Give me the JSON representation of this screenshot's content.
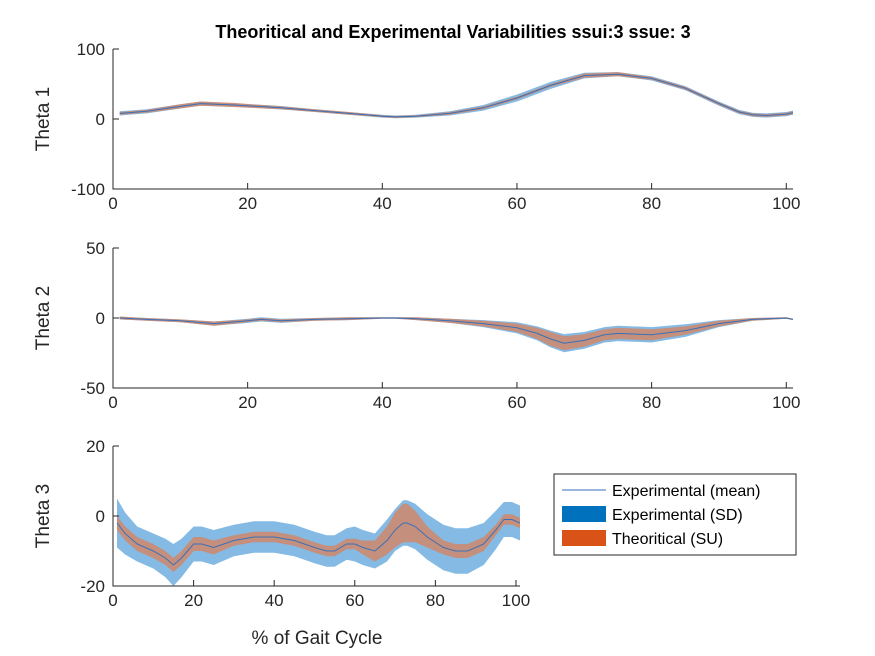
{
  "chart_data": [
    {
      "type": "area",
      "title": "Theoritical and Experimental Variabilities ssui:3 ssue: 3",
      "ylabel": "Theta 1",
      "xlabel": "",
      "xlim": [
        0,
        101
      ],
      "ylim": [
        -100,
        100
      ],
      "xticks": [
        0,
        20,
        40,
        60,
        80,
        100
      ],
      "yticks": [
        -100,
        0,
        100
      ],
      "x": [
        1,
        5,
        10,
        13,
        18,
        25,
        30,
        35,
        40,
        42,
        45,
        50,
        55,
        60,
        65,
        70,
        75,
        80,
        85,
        90,
        93,
        95,
        97,
        100,
        101
      ],
      "mean": [
        8,
        11,
        18,
        22,
        20,
        16,
        12,
        8,
        4,
        3,
        4,
        8,
        16,
        30,
        48,
        62,
        64,
        58,
        44,
        22,
        10,
        6,
        5,
        7,
        9
      ],
      "sd": [
        3,
        3,
        3,
        3,
        2.5,
        2.5,
        2,
        2,
        2,
        2,
        2,
        3,
        4,
        5,
        5,
        4,
        3,
        3,
        3,
        3,
        3,
        3,
        3,
        3,
        3
      ],
      "su": [
        2,
        2,
        3,
        3,
        3,
        2,
        2,
        2,
        1.5,
        1.5,
        1.5,
        2,
        2,
        2,
        2,
        3,
        3,
        2,
        2,
        2,
        2,
        2,
        2,
        2,
        2
      ]
    },
    {
      "type": "area",
      "title": "",
      "ylabel": "Theta 2",
      "xlabel": "",
      "xlim": [
        0,
        101
      ],
      "ylim": [
        -50,
        50
      ],
      "xticks": [
        0,
        20,
        40,
        60,
        80,
        100
      ],
      "yticks": [
        -50,
        0,
        50
      ],
      "x": [
        1,
        5,
        10,
        15,
        20,
        22,
        25,
        30,
        35,
        40,
        42,
        45,
        50,
        55,
        60,
        63,
        65,
        67,
        70,
        73,
        75,
        80,
        85,
        90,
        95,
        100,
        101
      ],
      "mean": [
        0,
        -1,
        -2,
        -4,
        -2,
        -1,
        -2,
        -1,
        -0.5,
        0,
        0,
        -0.5,
        -2,
        -4,
        -7,
        -11,
        -15,
        -18,
        -16,
        -12,
        -11,
        -12,
        -9,
        -4,
        -1,
        0,
        -1
      ],
      "sd": [
        1,
        1,
        1,
        1.5,
        1.5,
        1.5,
        1.5,
        1,
        1,
        0.5,
        0.5,
        1,
        1.5,
        2.5,
        4,
        5,
        6,
        6.5,
        6,
        5.5,
        5.5,
        5.5,
        4.5,
        2.5,
        1,
        0.5,
        0.5
      ],
      "su": [
        1,
        1,
        1,
        1.5,
        1,
        1,
        1,
        1,
        1,
        0.5,
        0.5,
        1,
        1.5,
        2,
        3,
        4,
        5,
        5,
        4.5,
        4,
        4,
        4,
        3,
        2,
        1,
        0.5,
        0.5
      ]
    },
    {
      "type": "area",
      "title": "",
      "ylabel": "Theta 3",
      "xlabel": "% of Gait Cycle",
      "xlim": [
        0,
        101
      ],
      "ylim": [
        -20,
        20
      ],
      "xticks": [
        0,
        20,
        40,
        60,
        80,
        100
      ],
      "yticks": [
        -20,
        0,
        20
      ],
      "x": [
        1,
        3,
        6,
        10,
        13,
        15,
        17,
        20,
        22,
        25,
        30,
        35,
        40,
        45,
        50,
        53,
        55,
        58,
        60,
        62,
        65,
        68,
        70,
        72,
        73,
        75,
        78,
        82,
        85,
        88,
        92,
        95,
        97,
        99,
        101
      ],
      "mean": [
        -2,
        -5,
        -8,
        -10,
        -12,
        -14,
        -12,
        -8,
        -8,
        -9,
        -7,
        -6,
        -6,
        -7,
        -9,
        -10,
        -10,
        -8,
        -8,
        -9,
        -10,
        -7,
        -4,
        -2,
        -2,
        -3,
        -6,
        -9,
        -10,
        -10,
        -8,
        -4,
        -1,
        -1,
        -2
      ],
      "sd": [
        7,
        6,
        5,
        5,
        5.5,
        6,
        5.5,
        5,
        5,
        5,
        4.5,
        4.5,
        4.5,
        4.5,
        4.5,
        4.5,
        4.5,
        4.5,
        5,
        5,
        5,
        6,
        6,
        6.5,
        6.5,
        6.5,
        6.5,
        6.5,
        6.5,
        6.5,
        6,
        5.5,
        5,
        5,
        5
      ],
      "su": [
        2,
        2,
        2,
        2,
        2,
        2,
        2,
        2,
        2,
        2,
        1.5,
        1.5,
        1.5,
        1.5,
        1.5,
        1.5,
        1.5,
        1.5,
        1.5,
        2,
        3,
        4,
        5,
        5.5,
        5.5,
        4.5,
        3,
        2,
        2,
        2,
        2,
        1.5,
        1.5,
        1.5,
        1.5
      ]
    }
  ],
  "legend": {
    "placement": "right of bottom panel",
    "entries": [
      "Experimental (mean)",
      "Experimental (SD)",
      "Theoritical (SU)"
    ]
  },
  "colors": {
    "mean_line": "#3a6fb8",
    "sd_fill": "#7db6e3",
    "su_fill": "#d9825b",
    "axis": "#262626"
  }
}
